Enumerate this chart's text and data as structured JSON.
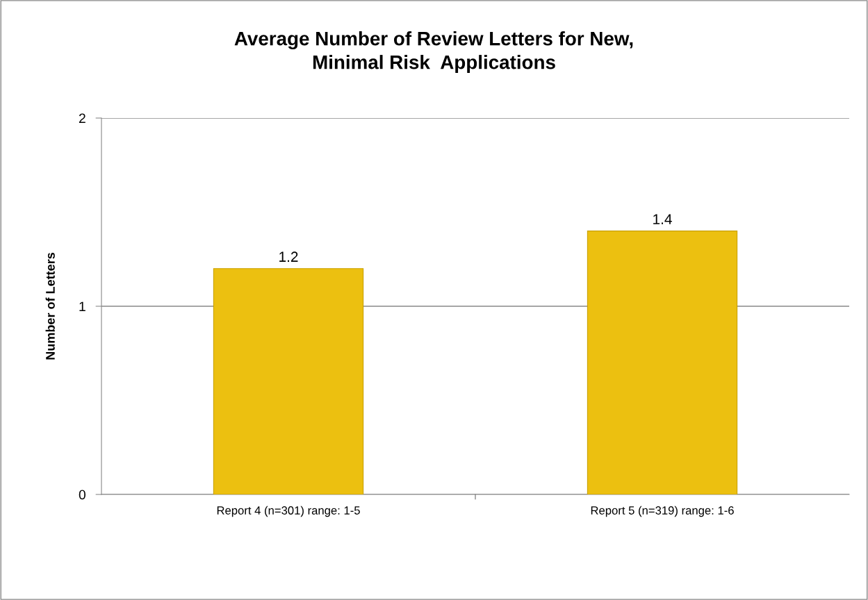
{
  "chart_data": {
    "type": "bar",
    "title": "Average Number of Review Letters for New,\nMinimal Risk  Applications",
    "ylabel": "Number of Letters",
    "categories": [
      "Report 4 (n=301) range: 1-5",
      "Report 5 (n=319) range: 1-6"
    ],
    "values": [
      1.2,
      1.4
    ],
    "color": "#ecc010",
    "ylim": [
      0,
      2
    ],
    "yticks": [
      0,
      1,
      2
    ],
    "grid": "y",
    "data_labels": true
  }
}
